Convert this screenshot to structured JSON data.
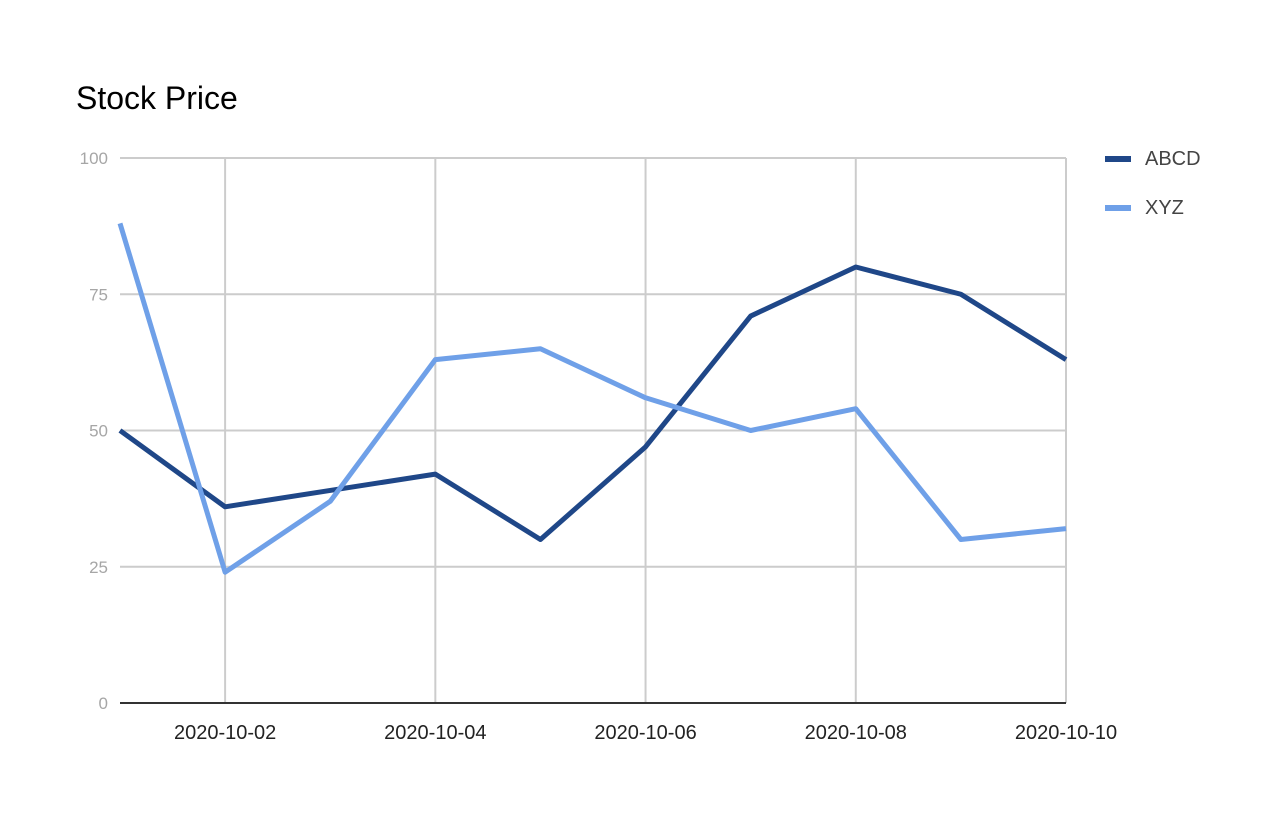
{
  "chart_data": {
    "type": "line",
    "title": "Stock Price",
    "xlabel": "",
    "ylabel": "",
    "x": [
      "2020-10-01",
      "2020-10-02",
      "2020-10-03",
      "2020-10-04",
      "2020-10-05",
      "2020-10-06",
      "2020-10-07",
      "2020-10-08",
      "2020-10-09",
      "2020-10-10"
    ],
    "x_tick_labels": [
      "2020-10-02",
      "2020-10-04",
      "2020-10-06",
      "2020-10-08",
      "2020-10-10"
    ],
    "y_ticks": [
      0,
      25,
      50,
      75,
      100
    ],
    "ylim": [
      0,
      100
    ],
    "grid": true,
    "legend_position": "right",
    "series": [
      {
        "name": "ABCD",
        "color": "#1f4788",
        "values": [
          50,
          36,
          39,
          42,
          30,
          47,
          71,
          80,
          75,
          63
        ]
      },
      {
        "name": "XYZ",
        "color": "#6fa0e8",
        "values": [
          88,
          24,
          37,
          63,
          65,
          56,
          50,
          54,
          30,
          32
        ]
      }
    ]
  }
}
